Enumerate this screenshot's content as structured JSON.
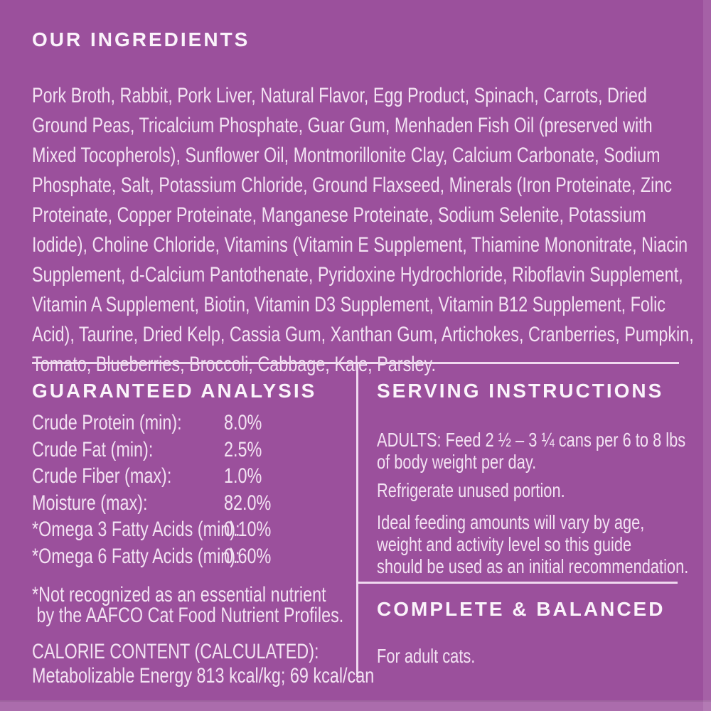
{
  "label": {
    "background_color": "#9b509c",
    "heading_color": "#fbf3fb",
    "body_color": "#f3e2f3",
    "divider_color": "#f0d9f0"
  },
  "ingredients": {
    "heading": "OUR INGREDIENTS",
    "body": "Pork Broth, Rabbit, Pork Liver, Natural Flavor, Egg Product, Spinach, Carrots, Dried\nGround Peas, Tricalcium Phosphate, Guar Gum, Menhaden Fish Oil (preserved with\nMixed Tocopherols), Sunflower Oil, Montmorillonite Clay, Calcium Carbonate, Sodium\nPhosphate, Salt, Potassium Chloride, Ground Flaxseed, Minerals (Iron Proteinate, Zinc\nProteinate, Copper Proteinate, Manganese Proteinate, Sodium Selenite, Potassium\nIodide), Choline Chloride, Vitamins (Vitamin E Supplement, Thiamine Mononitrate, Niacin\nSupplement, d-Calcium Pantothenate, Pyridoxine Hydrochloride, Riboflavin Supplement,\nVitamin A Supplement, Biotin, Vitamin D3 Supplement, Vitamin B12 Supplement, Folic\nAcid), Taurine, Dried Kelp, Cassia Gum, Xanthan Gum, Artichokes, Cranberries, Pumpkin,\nTomato, Blueberries, Broccoli, Cabbage, Kale, Parsley."
  },
  "guaranteed_analysis": {
    "heading": "GUARANTEED ANALYSIS",
    "rows": [
      {
        "label": "Crude Protein (min):",
        "value": "8.0%"
      },
      {
        "label": "Crude Fat (min):",
        "value": "2.5%"
      },
      {
        "label": "Crude Fiber (max):",
        "value": "1.0%"
      },
      {
        "label": "Moisture (max):",
        "value": "82.0%"
      },
      {
        "label": "*Omega 3 Fatty Acids (min):",
        "value": "0.10%"
      },
      {
        "label": "*Omega 6 Fatty Acids (min):",
        "value": "0.60%"
      }
    ],
    "footnote": "*Not recognized as an essential nutrient\n by the AAFCO Cat Food Nutrient Profiles.",
    "calorie_heading": "CALORIE CONTENT (CALCULATED):",
    "calorie_text": "Metabolizable Energy 813 kcal/kg; 69 kcal/can"
  },
  "serving_instructions": {
    "heading": "SERVING INSTRUCTIONS",
    "paragraphs": [
      "ADULTS: Feed 2 ½ – 3 ¼ cans per 6 to 8 lbs\nof body weight per day.",
      "Refrigerate unused portion.",
      "Ideal feeding amounts will vary by age,\nweight and activity level so this guide\nshould be used as an initial recommendation."
    ]
  },
  "complete_balanced": {
    "heading": "COMPLETE & BALANCED",
    "text": "For adult cats."
  }
}
